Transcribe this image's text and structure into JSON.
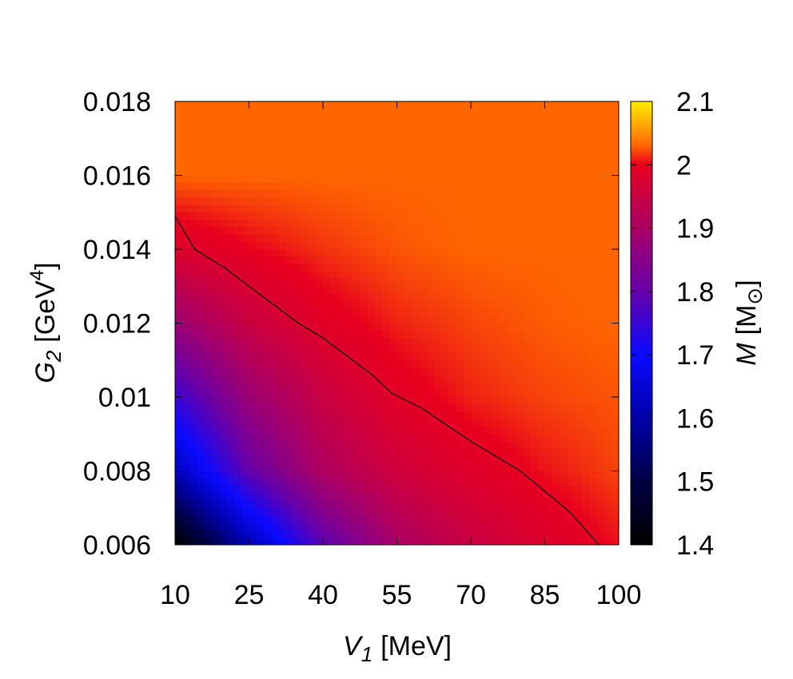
{
  "chart_data": {
    "type": "heatmap",
    "title": "",
    "x": {
      "var": "V",
      "sub": "1",
      "unit": "[MeV]",
      "range": [
        10,
        100
      ],
      "ticks": [
        10,
        25,
        40,
        55,
        70,
        85,
        100
      ],
      "tick_labels": [
        "10",
        "25",
        "40",
        "55",
        "70",
        "85",
        "100"
      ]
    },
    "y": {
      "var": "G",
      "sub": "2",
      "unit_prefix": "[GeV",
      "unit_sup": "4",
      "unit_suffix": "]",
      "range": [
        0.006,
        0.018
      ],
      "ticks": [
        0.006,
        0.008,
        0.01,
        0.012,
        0.014,
        0.016,
        0.018
      ],
      "tick_labels": [
        "0.006",
        "0.008",
        "0.01",
        "0.012",
        "0.014",
        "0.016",
        "0.018"
      ]
    },
    "colorbar": {
      "var": "M",
      "unit_prefix": "[M",
      "unit_sub": "⊙",
      "unit_suffix": "]",
      "range": [
        1.4,
        2.1
      ],
      "ticks": [
        1.4,
        1.5,
        1.6,
        1.7,
        1.8,
        1.9,
        2.0,
        2.1
      ],
      "tick_labels": [
        "1.4",
        "1.5",
        "1.6",
        "1.7",
        "1.8",
        "1.9",
        "2",
        "2.1"
      ],
      "palette": [
        {
          "v": 1.4,
          "color": "#000000"
        },
        {
          "v": 1.5,
          "color": "#000044"
        },
        {
          "v": 1.6,
          "color": "#0000aa"
        },
        {
          "v": 1.7,
          "color": "#0a0aff"
        },
        {
          "v": 1.8,
          "color": "#6600aa"
        },
        {
          "v": 1.9,
          "color": "#aa0066"
        },
        {
          "v": 2.0,
          "color": "#e8001e"
        },
        {
          "v": 2.03,
          "color": "#ff6600"
        },
        {
          "v": 2.1,
          "color": "#ffee00"
        }
      ]
    },
    "contour_level": 2.0,
    "contour": [
      [
        10,
        0.0149
      ],
      [
        14,
        0.014
      ],
      [
        20,
        0.0135
      ],
      [
        25,
        0.013
      ],
      [
        30,
        0.0125
      ],
      [
        35,
        0.012
      ],
      [
        40,
        0.0116
      ],
      [
        45,
        0.0111
      ],
      [
        50,
        0.0106
      ],
      [
        54,
        0.0101
      ],
      [
        60,
        0.0097
      ],
      [
        70,
        0.0088
      ],
      [
        80,
        0.008
      ],
      [
        90,
        0.0069
      ],
      [
        96,
        0.006
      ]
    ],
    "grid_values": {
      "x": [
        10,
        25,
        40,
        55,
        70,
        85,
        100
      ],
      "y": [
        0.006,
        0.008,
        0.01,
        0.012,
        0.014,
        0.016,
        0.018
      ],
      "z": [
        [
          1.4,
          1.61,
          1.79,
          1.9,
          1.95,
          1.98,
          2.005
        ],
        [
          1.62,
          1.8,
          1.91,
          1.96,
          1.985,
          2.005,
          2.02
        ],
        [
          1.75,
          1.88,
          1.95,
          1.99,
          2.01,
          2.02,
          2.025
        ],
        [
          1.88,
          1.95,
          1.99,
          2.01,
          2.02,
          2.027,
          2.03
        ],
        [
          1.98,
          2.0,
          2.015,
          2.025,
          2.03,
          2.03,
          2.03
        ],
        [
          2.03,
          2.03,
          2.03,
          2.03,
          2.03,
          2.03,
          2.03
        ],
        [
          2.03,
          2.03,
          2.03,
          2.03,
          2.03,
          2.03,
          2.03
        ]
      ]
    }
  }
}
